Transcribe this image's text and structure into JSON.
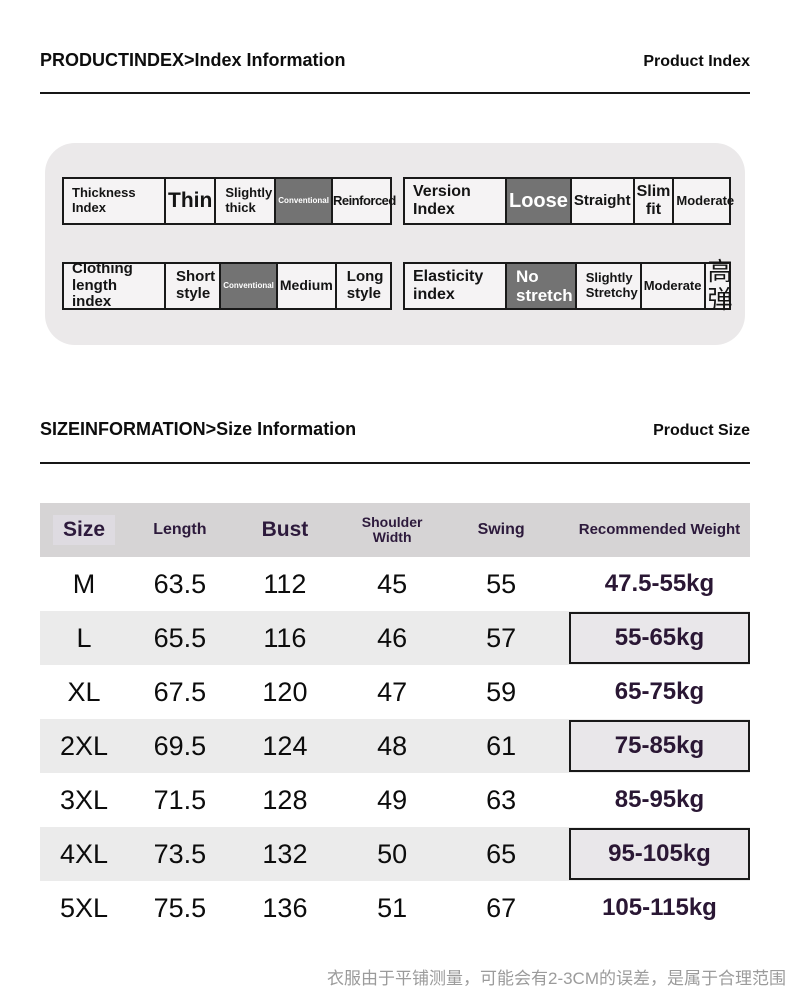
{
  "header1": {
    "left": "PRODUCTINDEX>Index Information",
    "right": "Product Index"
  },
  "header2": {
    "left": "SIZEINFORMATION>Size Information",
    "right": "Product Size"
  },
  "colors": {
    "selected_cell": "#737373",
    "accent_text": "#2a1734",
    "panel_bg": "#ebe9ea",
    "header_row_bg": "#d6d4d5",
    "alt_row_bg": "#ebebeb"
  },
  "index_panel": {
    "tables": [
      {
        "label": "Thickness Index",
        "cells": [
          {
            "text": "Thin",
            "selected": false
          },
          {
            "text": "Slightly thick",
            "selected": false
          },
          {
            "text": "Conventional",
            "selected": true
          },
          {
            "text": "Reinforced",
            "selected": false
          }
        ]
      },
      {
        "label": "Version Index",
        "cells": [
          {
            "text": "Loose",
            "selected": true
          },
          {
            "text": "Straight",
            "selected": false
          },
          {
            "text": "Slim fit",
            "selected": false
          },
          {
            "text": "Moderate",
            "selected": false
          }
        ]
      },
      {
        "label": "Clothing length index",
        "cells": [
          {
            "text": "Short style",
            "selected": false
          },
          {
            "text": "Conventional",
            "selected": true
          },
          {
            "text": "Medium",
            "selected": false
          },
          {
            "text": "Long style",
            "selected": false
          }
        ]
      },
      {
        "label": "Elasticity index",
        "cells": [
          {
            "text": "No stretch",
            "selected": true
          },
          {
            "text": "Slightly Stretchy",
            "selected": false
          },
          {
            "text": "Moderate",
            "selected": false
          },
          {
            "text": "高弹",
            "selected": false
          }
        ]
      }
    ]
  },
  "size_table": {
    "columns": [
      "Size",
      "Length",
      "Bust",
      "Shoulder Width",
      "Swing",
      "Recommended Weight"
    ],
    "rows": [
      {
        "cells": [
          "M",
          "63.5",
          "112",
          "45",
          "55"
        ],
        "weight": "47.5-55kg",
        "boxed": false
      },
      {
        "cells": [
          "L",
          "65.5",
          "116",
          "46",
          "57"
        ],
        "weight": "55-65kg",
        "boxed": true
      },
      {
        "cells": [
          "XL",
          "67.5",
          "120",
          "47",
          "59"
        ],
        "weight": "65-75kg",
        "boxed": false
      },
      {
        "cells": [
          "2XL",
          "69.5",
          "124",
          "48",
          "61"
        ],
        "weight": "75-85kg",
        "boxed": true
      },
      {
        "cells": [
          "3XL",
          "71.5",
          "128",
          "49",
          "63"
        ],
        "weight": "85-95kg",
        "boxed": false
      },
      {
        "cells": [
          "4XL",
          "73.5",
          "132",
          "50",
          "65"
        ],
        "weight": "95-105kg",
        "boxed": true
      },
      {
        "cells": [
          "5XL",
          "75.5",
          "136",
          "51",
          "67"
        ],
        "weight": "105-115kg",
        "boxed": false
      }
    ]
  },
  "footnote": "衣服由于平铺测量，可能会有2-3CM的误差，是属于合理范围"
}
